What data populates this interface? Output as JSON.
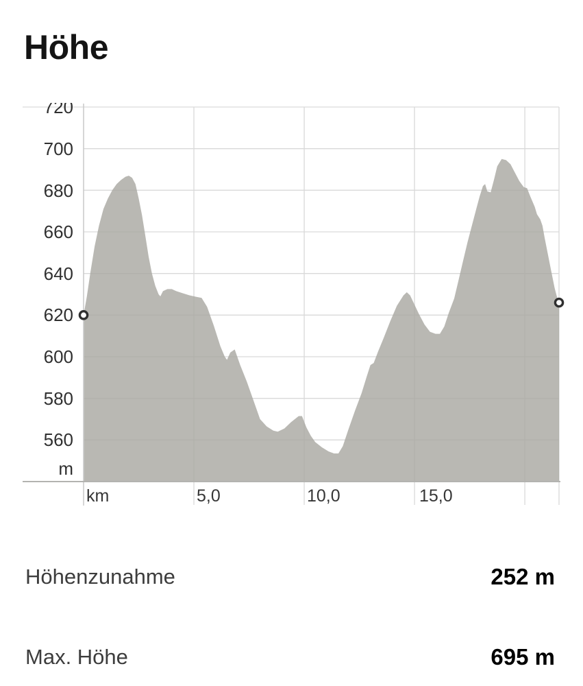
{
  "title": "Höhe",
  "chart_data": {
    "type": "area",
    "title": "Höhe",
    "x_axis": {
      "unit_label": "km",
      "tick_labels": [
        "km",
        "5,0",
        "10,0",
        "15,0"
      ],
      "tick_km": [
        0,
        5,
        10,
        15
      ],
      "gridline_km": [
        5,
        10,
        15,
        20
      ],
      "max_km": 21.55
    },
    "y_axis": {
      "unit_label": "m",
      "tick_labels": [
        "720",
        "700",
        "680",
        "660",
        "640",
        "620",
        "600",
        "580",
        "560"
      ],
      "tick_m": [
        720,
        700,
        680,
        660,
        640,
        620,
        600,
        580,
        560
      ],
      "top_m": 720,
      "baseline_m": 540
    },
    "grid": true,
    "legend": "none",
    "colors": {
      "area_fill": "rgba(167,166,160,0.8)",
      "gridline": "#d9d9d9",
      "axis_line": "#c9c9c9",
      "baseline": "#b3b3b0",
      "marker_stroke": "#2f2f2f",
      "marker_fill": "#ffffff"
    },
    "start_marker": {
      "km": 0,
      "m": 620
    },
    "end_marker": {
      "km": 21.55,
      "m": 626
    },
    "max_elevation_m": 695,
    "elevation_gain_m": 252,
    "profile": [
      [
        0.0,
        620
      ],
      [
        0.15,
        629
      ],
      [
        0.3,
        640
      ],
      [
        0.5,
        653
      ],
      [
        0.7,
        663
      ],
      [
        0.9,
        671
      ],
      [
        1.1,
        676
      ],
      [
        1.3,
        680
      ],
      [
        1.5,
        683
      ],
      [
        1.7,
        685
      ],
      [
        1.9,
        686.5
      ],
      [
        2.05,
        687
      ],
      [
        2.2,
        686
      ],
      [
        2.35,
        683
      ],
      [
        2.5,
        676
      ],
      [
        2.65,
        668
      ],
      [
        2.8,
        658
      ],
      [
        2.95,
        648
      ],
      [
        3.1,
        640
      ],
      [
        3.25,
        634
      ],
      [
        3.4,
        630
      ],
      [
        3.48,
        629
      ],
      [
        3.6,
        631.5
      ],
      [
        3.8,
        632.5
      ],
      [
        4.0,
        632.5
      ],
      [
        4.2,
        631.5
      ],
      [
        4.5,
        630.5
      ],
      [
        4.8,
        629.5
      ],
      [
        5.1,
        628.8
      ],
      [
        5.35,
        628.3
      ],
      [
        5.6,
        624
      ],
      [
        5.9,
        615
      ],
      [
        6.2,
        605
      ],
      [
        6.4,
        600
      ],
      [
        6.5,
        598.5
      ],
      [
        6.65,
        602
      ],
      [
        6.85,
        603.5
      ],
      [
        7.1,
        596
      ],
      [
        7.4,
        588
      ],
      [
        7.7,
        579
      ],
      [
        8.0,
        570
      ],
      [
        8.3,
        566.5
      ],
      [
        8.6,
        564.5
      ],
      [
        8.8,
        564
      ],
      [
        9.1,
        565.5
      ],
      [
        9.4,
        568.5
      ],
      [
        9.75,
        571.5
      ],
      [
        9.9,
        571.5
      ],
      [
        10.1,
        566
      ],
      [
        10.3,
        562
      ],
      [
        10.5,
        559
      ],
      [
        10.8,
        556.5
      ],
      [
        11.1,
        554.5
      ],
      [
        11.35,
        553.5
      ],
      [
        11.55,
        553.5
      ],
      [
        11.75,
        557
      ],
      [
        12.0,
        565
      ],
      [
        12.3,
        574
      ],
      [
        12.6,
        582.5
      ],
      [
        12.85,
        591
      ],
      [
        13.0,
        596
      ],
      [
        13.15,
        597
      ],
      [
        13.35,
        602.5
      ],
      [
        13.6,
        609
      ],
      [
        13.9,
        617
      ],
      [
        14.2,
        624.5
      ],
      [
        14.5,
        629.5
      ],
      [
        14.65,
        631
      ],
      [
        14.8,
        629.5
      ],
      [
        15.0,
        625
      ],
      [
        15.2,
        620.5
      ],
      [
        15.45,
        615.5
      ],
      [
        15.7,
        612
      ],
      [
        15.95,
        611
      ],
      [
        16.15,
        611
      ],
      [
        16.35,
        614.5
      ],
      [
        16.55,
        621
      ],
      [
        16.8,
        628
      ],
      [
        17.0,
        637
      ],
      [
        17.2,
        646
      ],
      [
        17.4,
        655
      ],
      [
        17.6,
        663
      ],
      [
        17.8,
        671
      ],
      [
        17.95,
        677
      ],
      [
        18.1,
        682
      ],
      [
        18.2,
        683
      ],
      [
        18.3,
        679.5
      ],
      [
        18.45,
        679
      ],
      [
        18.6,
        685
      ],
      [
        18.75,
        691.5
      ],
      [
        18.95,
        695
      ],
      [
        19.15,
        694.5
      ],
      [
        19.35,
        692.5
      ],
      [
        19.55,
        688.5
      ],
      [
        19.75,
        684.5
      ],
      [
        19.95,
        681.5
      ],
      [
        20.1,
        681
      ],
      [
        20.25,
        677
      ],
      [
        20.45,
        672
      ],
      [
        20.55,
        668.5
      ],
      [
        20.7,
        666
      ],
      [
        20.8,
        663
      ],
      [
        20.9,
        657
      ],
      [
        21.05,
        649
      ],
      [
        21.2,
        641
      ],
      [
        21.35,
        633
      ],
      [
        21.5,
        627
      ],
      [
        21.55,
        626
      ]
    ]
  },
  "stats": [
    {
      "label": "Höhenzunahme",
      "value": "252 m"
    },
    {
      "label": "Max. Höhe",
      "value": "695 m"
    }
  ]
}
